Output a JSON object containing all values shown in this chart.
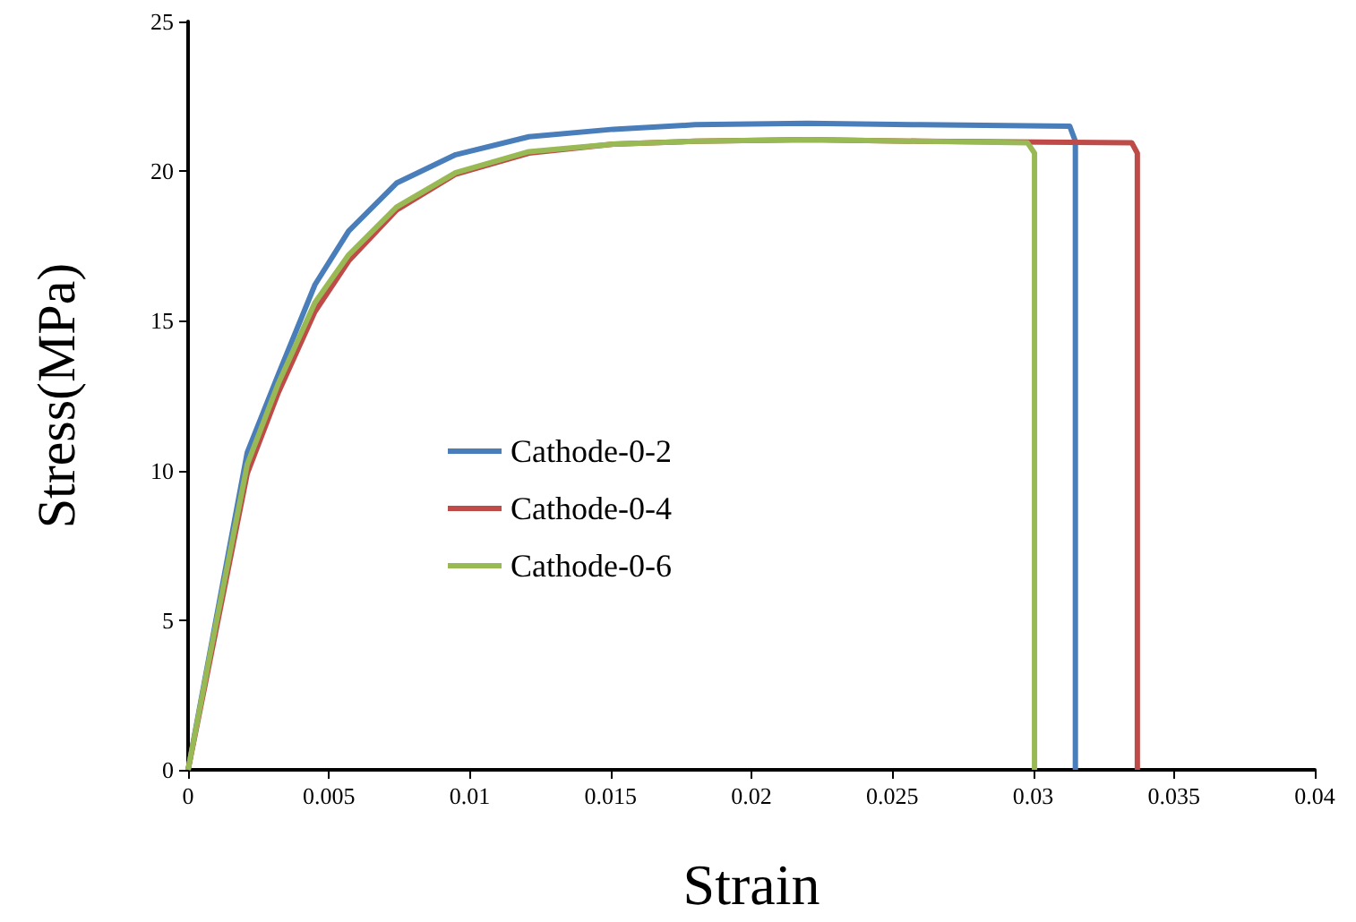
{
  "chart_data": {
    "type": "line",
    "xlabel": "Strain",
    "ylabel": "Stress(MPa)",
    "xlim": [
      0,
      0.04
    ],
    "xticks": [
      0,
      0.005,
      0.01,
      0.015,
      0.02,
      0.025,
      0.03,
      0.035,
      0.04
    ],
    "ylim": [
      0,
      25
    ],
    "yticks": [
      0,
      5,
      10,
      15,
      20,
      25
    ],
    "grid": false,
    "legend": "center",
    "marker": "none",
    "line_style": "solid",
    "series": [
      {
        "name": "Cathode-0-2",
        "color": "#4a7ebb",
        "x": [
          0,
          0.00085,
          0.0021,
          0.0032,
          0.0045,
          0.0057,
          0.0074,
          0.0095,
          0.0121,
          0.0151,
          0.018,
          0.022,
          0.026,
          0.0313,
          0.0315,
          0.0315
        ],
        "values": [
          0,
          4.3,
          10.6,
          13.2,
          16.2,
          18.0,
          19.6,
          20.55,
          21.15,
          21.4,
          21.55,
          21.6,
          21.55,
          21.5,
          21.0,
          0
        ]
      },
      {
        "name": "Cathode-0-4",
        "color": "#be4b48",
        "x": [
          0,
          0.00085,
          0.0021,
          0.0032,
          0.0045,
          0.0057,
          0.0074,
          0.0095,
          0.0121,
          0.0151,
          0.018,
          0.022,
          0.026,
          0.0335,
          0.0337,
          0.0337
        ],
        "values": [
          0,
          4.0,
          9.9,
          12.6,
          15.3,
          17.0,
          18.7,
          19.9,
          20.6,
          20.9,
          21.0,
          21.05,
          21.0,
          20.95,
          20.6,
          0
        ]
      },
      {
        "name": "Cathode-0-6",
        "color": "#98b954",
        "x": [
          0,
          0.00085,
          0.0021,
          0.0032,
          0.0045,
          0.0057,
          0.0074,
          0.0095,
          0.0121,
          0.0151,
          0.018,
          0.022,
          0.026,
          0.0298,
          0.03005,
          0.03005
        ],
        "values": [
          0,
          4.2,
          10.2,
          12.9,
          15.6,
          17.2,
          18.8,
          19.95,
          20.65,
          20.9,
          21.0,
          21.05,
          21.0,
          20.95,
          20.6,
          0
        ]
      }
    ]
  }
}
